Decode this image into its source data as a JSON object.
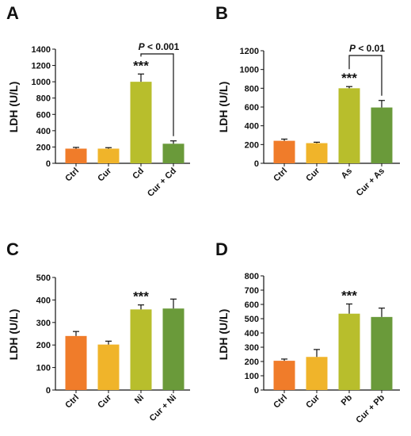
{
  "colors": {
    "Ctrl": "#f07c2a",
    "Cur": "#f0b42a",
    "Metal": "#b8be2c",
    "Combo": "#6a9a3a"
  },
  "chart_data": [
    {
      "panel": "A",
      "type": "bar",
      "ylabel": "LDH (U/L)",
      "categories": [
        "Ctrl",
        "Cur",
        "Cd",
        "Cur + Cd"
      ],
      "values": [
        180,
        180,
        1000,
        240
      ],
      "errors": [
        15,
        12,
        95,
        35
      ],
      "ylim": [
        0,
        1400
      ],
      "yticks": [
        0,
        200,
        400,
        600,
        800,
        1000,
        1200,
        1400
      ],
      "stars": {
        "index": 2,
        "text": "***"
      },
      "pvalue": {
        "from": 2,
        "to": 3,
        "p": "P",
        "op": "<",
        "value": "0.001"
      }
    },
    {
      "panel": "B",
      "type": "bar",
      "ylabel": "LDH (U/L)",
      "categories": [
        "Ctrl",
        "Cur",
        "As",
        "Cur + As"
      ],
      "values": [
        240,
        215,
        800,
        595
      ],
      "errors": [
        18,
        10,
        18,
        75
      ],
      "ylim": [
        0,
        1200
      ],
      "yticks": [
        0,
        200,
        400,
        600,
        800,
        1000,
        1200
      ],
      "stars": {
        "index": 2,
        "text": "***"
      },
      "pvalue": {
        "from": 2,
        "to": 3,
        "p": "P",
        "op": "<",
        "value": "0.01"
      }
    },
    {
      "panel": "C",
      "type": "bar",
      "ylabel": "LDH (U/L)",
      "categories": [
        "Ctrl",
        "Cur",
        "Ni",
        "Cur + Ni"
      ],
      "values": [
        240,
        202,
        358,
        362
      ],
      "errors": [
        20,
        15,
        20,
        42
      ],
      "ylim": [
        0,
        500
      ],
      "yticks": [
        0,
        100,
        200,
        300,
        400,
        500
      ],
      "stars": {
        "index": 2,
        "text": "***"
      },
      "pvalue": null
    },
    {
      "panel": "D",
      "type": "bar",
      "ylabel": "LDH (U/L)",
      "categories": [
        "Ctrl",
        "Cur",
        "Pb",
        "Cur + Pb"
      ],
      "values": [
        205,
        232,
        535,
        512
      ],
      "errors": [
        12,
        52,
        68,
        62
      ],
      "ylim": [
        0,
        800
      ],
      "yticks": [
        0,
        100,
        200,
        300,
        400,
        500,
        600,
        700,
        800
      ],
      "stars": {
        "index": 2,
        "text": "***"
      },
      "pvalue": null
    }
  ]
}
